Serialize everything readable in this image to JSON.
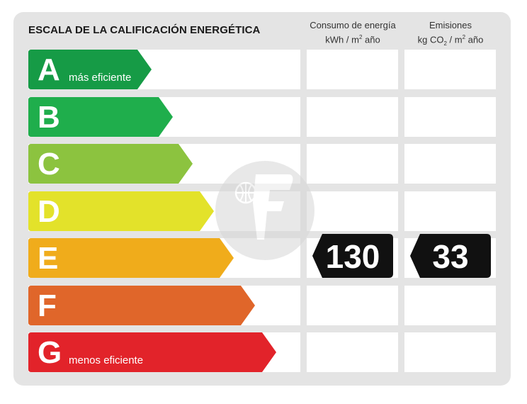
{
  "title": "ESCALA DE LA CALIFICACIÓN ENERGÉTICA",
  "columns": {
    "energy": {
      "line1": "Consumo de energía",
      "unit_a": "kWh / m",
      "unit_sup": "2",
      "unit_b": " año"
    },
    "emissions": {
      "line1": "Emisiones",
      "unit_a": "kg CO",
      "unit_sub": "2",
      "unit_c": " / m",
      "unit_sup": "2",
      "unit_b": " año"
    }
  },
  "ratings": [
    {
      "letter": "A",
      "label": "más eficiente",
      "color": "#169b46"
    },
    {
      "letter": "B",
      "label": "",
      "color": "#1fae4c"
    },
    {
      "letter": "C",
      "label": "",
      "color": "#8cc33f"
    },
    {
      "letter": "D",
      "label": "",
      "color": "#e3e22a"
    },
    {
      "letter": "E",
      "label": "",
      "color": "#f0ac1b"
    },
    {
      "letter": "F",
      "label": "",
      "color": "#e0662a"
    },
    {
      "letter": "G",
      "label": "menos eficiente",
      "color": "#e2232a"
    }
  ],
  "current_rating": "E",
  "values": {
    "energy": "130",
    "emissions": "33"
  },
  "watermark_icon": "brand-logo-icon"
}
